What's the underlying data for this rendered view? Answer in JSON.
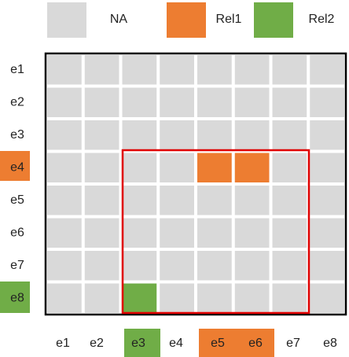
{
  "legend": [
    {
      "label": "NA"
    },
    {
      "label": "Rel1"
    },
    {
      "label": "Rel2"
    }
  ],
  "rows": [
    "e1",
    "e2",
    "e3",
    "e4",
    "e5",
    "e6",
    "e7",
    "e8"
  ],
  "columns": [
    "e1",
    "e2",
    "e3",
    "e4",
    "e5",
    "e6",
    "e7",
    "e8"
  ]
}
